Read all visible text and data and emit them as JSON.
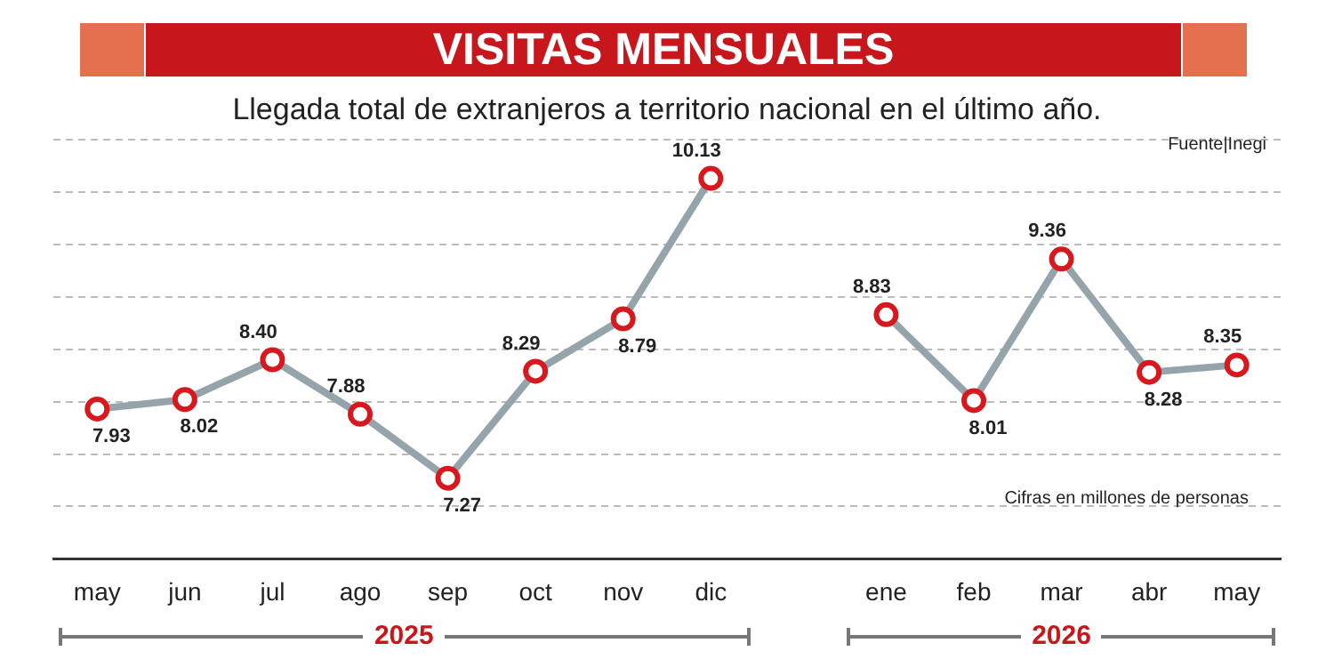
{
  "chart_data": {
    "type": "line",
    "title": "VISITAS MENSUALES",
    "subtitle": "Llegada total de extranjeros a territorio nacional en el último año.",
    "categories": [
      "may",
      "jun",
      "jul",
      "ago",
      "sep",
      "oct",
      "nov",
      "dic",
      null,
      "ene",
      "feb",
      "mar",
      "abr",
      "may"
    ],
    "series": [
      {
        "color": "#95a3ab",
        "values": [
          7.93,
          8.02,
          8.4,
          7.88,
          7.27,
          8.29,
          8.79,
          10.13,
          null,
          8.83,
          8.01,
          9.36,
          8.28,
          8.35
        ],
        "value_labels": [
          "7.93",
          "8.02",
          "8.40",
          "7.88",
          "7.27",
          "8.29",
          "8.79",
          "10.13",
          null,
          "8.83",
          "8.01",
          "9.36",
          "8.28",
          "8.35"
        ]
      }
    ],
    "annotations": [
      "Fuente|Inegi",
      "Cifras en millones de personas",
      "2025",
      "2026"
    ],
    "marker": "circle",
    "grid": "y",
    "legend": false
  }
}
